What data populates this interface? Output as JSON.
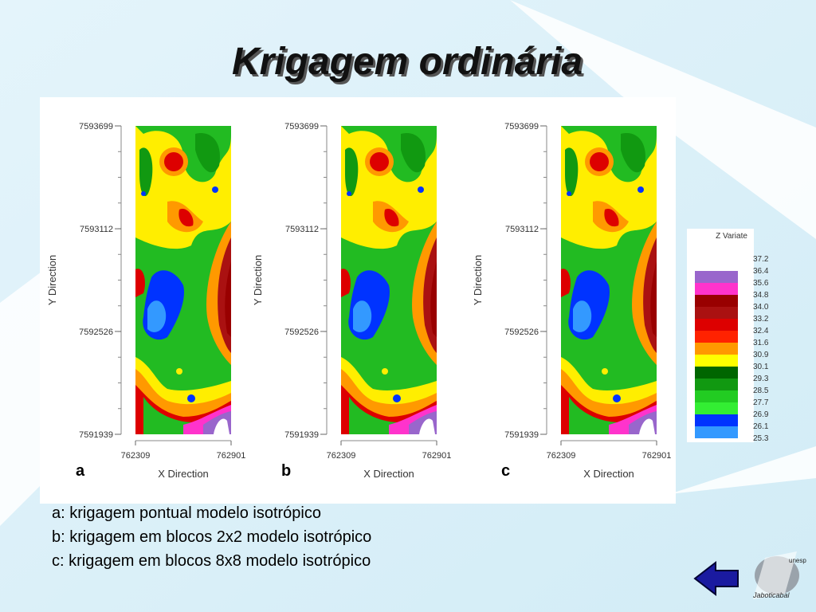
{
  "title": "Krigagem ordinária",
  "panels": [
    {
      "letter": "a",
      "y_label": "Y Direction",
      "x_label": "X Direction",
      "yticks": [
        7593699,
        7593112,
        7592526,
        7591939
      ],
      "xticks": [
        762309,
        762901
      ]
    },
    {
      "letter": "b",
      "y_label": "Y Direction",
      "x_label": "X Direction",
      "yticks": [
        7593699,
        7593112,
        7592526,
        7591939
      ],
      "xticks": [
        762309,
        762901
      ]
    },
    {
      "letter": "c",
      "y_label": "Y Direction",
      "x_label": "X Direction",
      "yticks": [
        7593699,
        7593112,
        7592526,
        7591939
      ],
      "xticks": [
        762309,
        762901
      ]
    }
  ],
  "legend": {
    "title": "Z Variate",
    "labels": [
      "37.2",
      "36.4",
      "35.6",
      "34.8",
      "34.0",
      "33.2",
      "32.4",
      "31.6",
      "30.9",
      "30.1",
      "29.3",
      "28.5",
      "27.7",
      "26.9",
      "26.1",
      "25.3"
    ],
    "colors": [
      "#ffffff",
      "#9966cc",
      "#ff33cc",
      "#990000",
      "#aa1111",
      "#dd0000",
      "#ff2200",
      "#ff9900",
      "#ffff00",
      "#006600",
      "#119911",
      "#22cc22",
      "#33ee33",
      "#0033ff",
      "#3399ff"
    ]
  },
  "captions": [
    "a: krigagem pontual modelo isotrópico",
    "b: krigagem em blocos 2x2 modelo isotrópico",
    "c: krigagem em blocos 8x8 modelo isotrópico"
  ],
  "logo": {
    "top": "unesp",
    "bottom": "Jaboticabal"
  }
}
